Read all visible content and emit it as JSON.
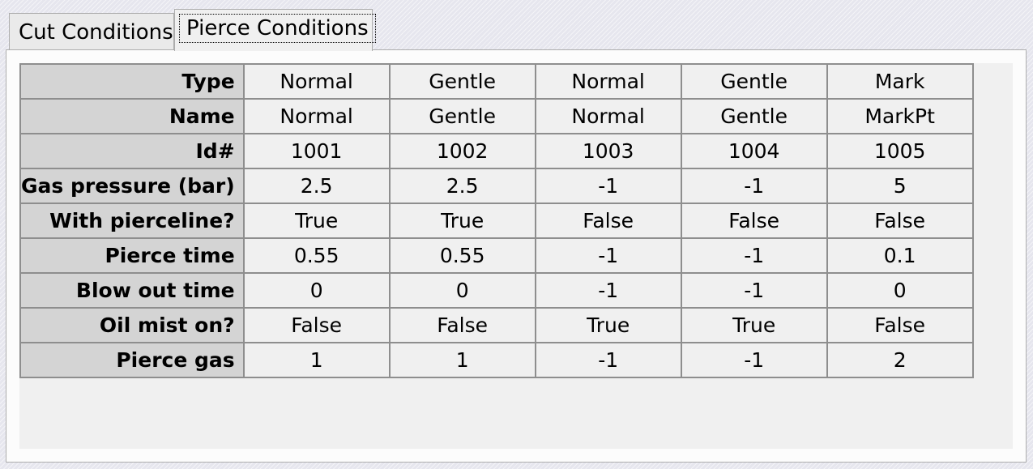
{
  "tabs": [
    {
      "label": "Cut Conditions",
      "active": false
    },
    {
      "label": "Pierce Conditions",
      "active": true
    }
  ],
  "grid": {
    "rows": [
      {
        "header": "Type",
        "values": [
          "Normal",
          "Gentle",
          "Normal",
          "Gentle",
          "Mark"
        ]
      },
      {
        "header": "Name",
        "values": [
          "Normal",
          "Gentle",
          "Normal",
          "Gentle",
          "MarkPt"
        ]
      },
      {
        "header": "Id#",
        "values": [
          "1001",
          "1002",
          "1003",
          "1004",
          "1005"
        ]
      },
      {
        "header": "Gas pressure (bar)",
        "values": [
          "2.5",
          "2.5",
          "-1",
          "-1",
          "5"
        ]
      },
      {
        "header": "With pierceline?",
        "values": [
          "True",
          "True",
          "False",
          "False",
          "False"
        ]
      },
      {
        "header": "Pierce time",
        "values": [
          "0.55",
          "0.55",
          "-1",
          "-1",
          "0.1"
        ]
      },
      {
        "header": "Blow out time",
        "values": [
          "0",
          "0",
          "-1",
          "-1",
          "0"
        ]
      },
      {
        "header": "Oil mist on?",
        "values": [
          "False",
          "False",
          "True",
          "True",
          "False"
        ]
      },
      {
        "header": "Pierce gas",
        "values": [
          "1",
          "1",
          "-1",
          "-1",
          "2"
        ]
      }
    ]
  }
}
